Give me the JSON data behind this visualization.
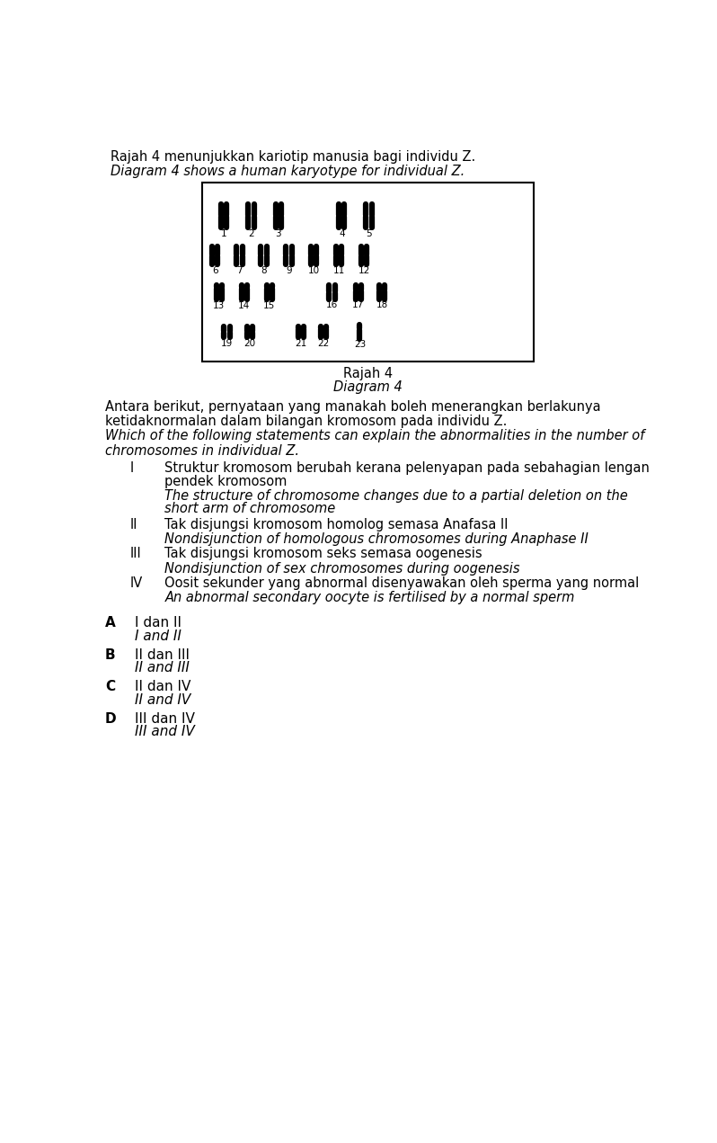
{
  "title_line1": "Rajah 4 menunjukkan kariotip manusia bagi individu Z.",
  "title_line2": "Diagram 4 shows a human karyotype for individual Z.",
  "diagram_label1": "Rajah 4",
  "diagram_label2": "Diagram 4",
  "question_malay1": "Antara berikut, pernyataan yang manakah boleh menerangkan berlakunya",
  "question_malay2": "ketidaknormalan dalam bilangan kromosom pada individu Z.",
  "question_english1": "Which of the following statements can explain the abnormalities in the number of",
  "question_english2": "chromosomes in individual Z.",
  "items": [
    {
      "roman": "I",
      "malay1": "Struktur kromosom berubah kerana pelenyapan pada sebahagian lengan",
      "malay2": "pendek kromosom",
      "english1": "The structure of chromosome changes due to a partial deletion on the",
      "english2": "short arm of chromosome"
    },
    {
      "roman": "II",
      "malay1": "Tak disjungsi kromosom homolog semasa Anafasa II",
      "malay2": "",
      "english1": "Nondisjunction of homologous chromosomes during Anaphase II",
      "english2": ""
    },
    {
      "roman": "III",
      "malay1": "Tak disjungsi kromosom seks semasa oogenesis",
      "malay2": "",
      "english1": "Nondisjunction of sex chromosomes during oogenesis",
      "english2": ""
    },
    {
      "roman": "IV",
      "malay1": "Oosit sekunder yang abnormal disenyawakan oleh sperma yang normal",
      "malay2": "",
      "english1": "An abnormal secondary oocyte is fertilised by a normal sperm",
      "english2": ""
    }
  ],
  "options": [
    {
      "letter": "A",
      "malay": "I dan II",
      "english": "I and II"
    },
    {
      "letter": "B",
      "malay": "II dan III",
      "english": "II and III"
    },
    {
      "letter": "C",
      "malay": "II dan IV",
      "english": "II and IV"
    },
    {
      "letter": "D",
      "malay": "III dan IV",
      "english": "III and IV"
    }
  ],
  "background_color": "#ffffff",
  "text_color": "#000000"
}
